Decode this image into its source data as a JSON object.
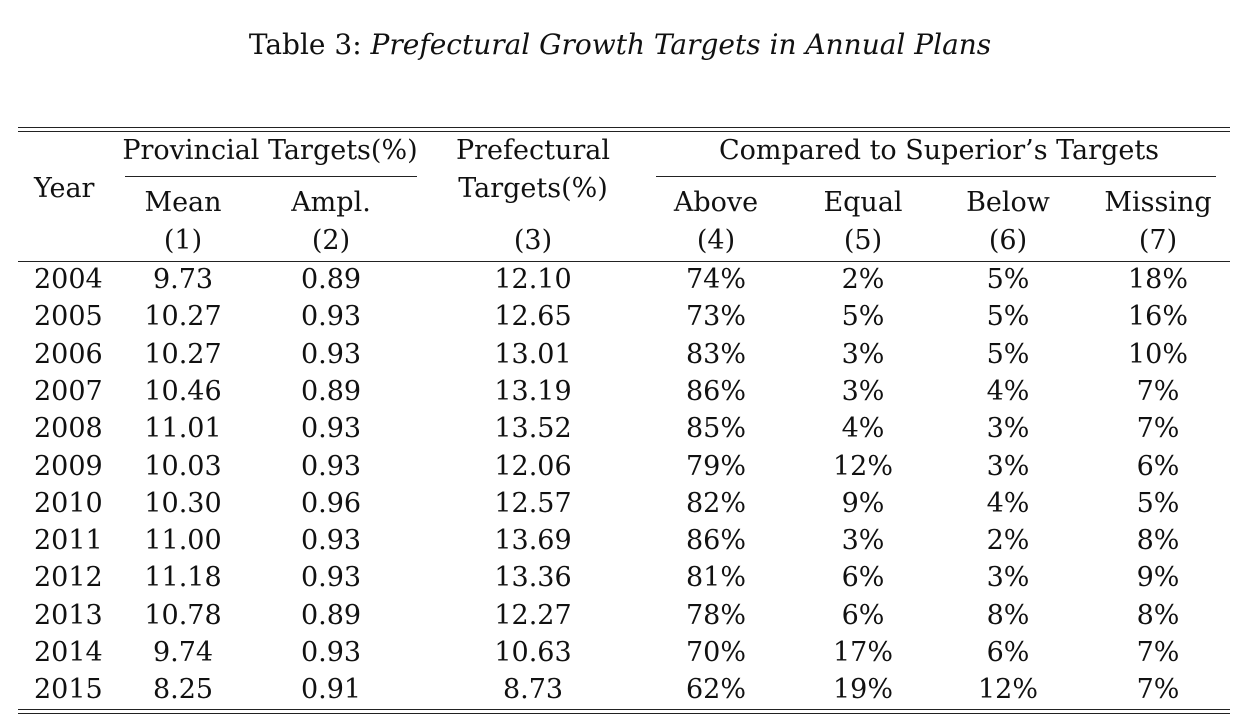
{
  "caption": {
    "label": "Table 3:",
    "title": "Prefectural Growth Targets in Annual Plans"
  },
  "header": {
    "year": "Year",
    "provincial_group": "Provincial Targets(%)",
    "compared_group": "Compared to Superior’s Targets",
    "prefectural_line1": "Prefectural",
    "prefectural_line2": "Targets(%)",
    "columns": [
      "Mean",
      "Ampl.",
      "Above",
      "Equal",
      "Below",
      "Missing"
    ],
    "numbers": [
      "(1)",
      "(2)",
      "(3)",
      "(4)",
      "(5)",
      "(6)",
      "(7)"
    ]
  },
  "rows": [
    [
      "2004",
      "9.73",
      "0.89",
      "12.10",
      "74%",
      "2%",
      "5%",
      "18%"
    ],
    [
      "2005",
      "10.27",
      "0.93",
      "12.65",
      "73%",
      "5%",
      "5%",
      "16%"
    ],
    [
      "2006",
      "10.27",
      "0.93",
      "13.01",
      "83%",
      "3%",
      "5%",
      "10%"
    ],
    [
      "2007",
      "10.46",
      "0.89",
      "13.19",
      "86%",
      "3%",
      "4%",
      "7%"
    ],
    [
      "2008",
      "11.01",
      "0.93",
      "13.52",
      "85%",
      "4%",
      "3%",
      "7%"
    ],
    [
      "2009",
      "10.03",
      "0.93",
      "12.06",
      "79%",
      "12%",
      "3%",
      "6%"
    ],
    [
      "2010",
      "10.30",
      "0.96",
      "12.57",
      "82%",
      "9%",
      "4%",
      "5%"
    ],
    [
      "2011",
      "11.00",
      "0.93",
      "13.69",
      "86%",
      "3%",
      "2%",
      "8%"
    ],
    [
      "2012",
      "11.18",
      "0.93",
      "13.36",
      "81%",
      "6%",
      "3%",
      "9%"
    ],
    [
      "2013",
      "10.78",
      "0.89",
      "12.27",
      "78%",
      "6%",
      "8%",
      "8%"
    ],
    [
      "2014",
      "9.74",
      "0.93",
      "10.63",
      "70%",
      "17%",
      "6%",
      "7%"
    ],
    [
      "2015",
      "8.25",
      "0.91",
      "8.73",
      "62%",
      "19%",
      "12%",
      "7%"
    ]
  ]
}
